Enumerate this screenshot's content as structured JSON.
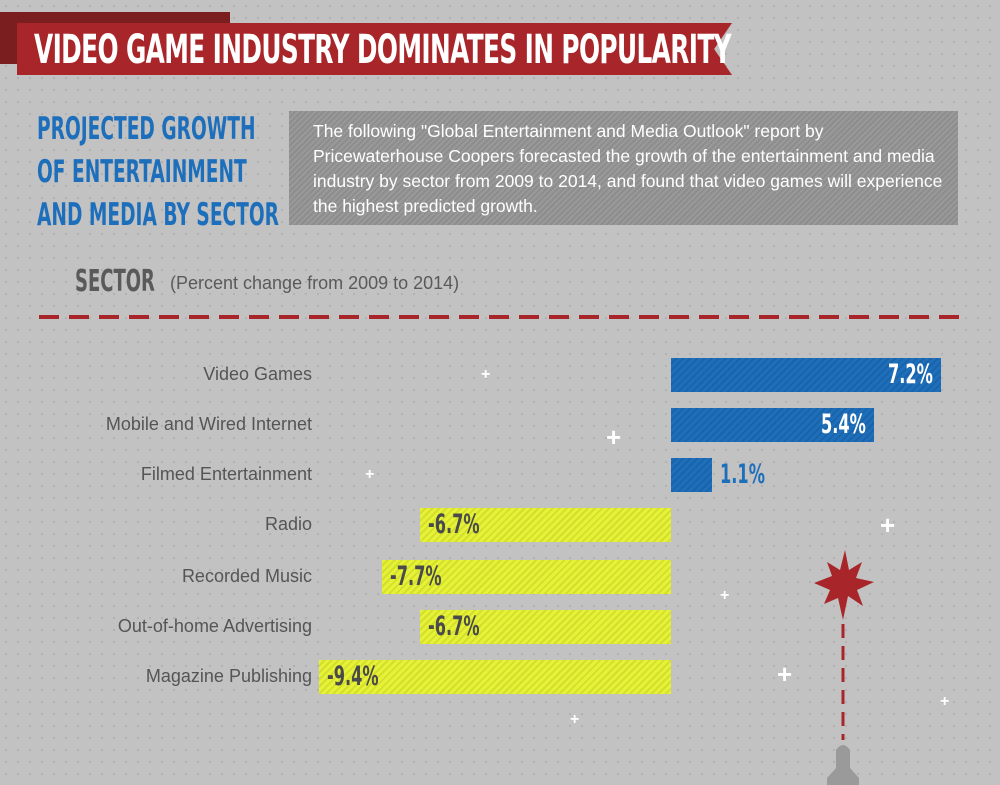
{
  "title": "VIDEO GAME INDUSTRY DOMINATES IN POPULARITY",
  "subtitle_lines": [
    "PROJECTED GROWTH",
    "OF ENTERTAINMENT",
    "AND MEDIA BY SECTOR"
  ],
  "intro": "The following \"Global Entertainment and Media Outlook\" report by Pricewaterhouse Coopers forecasted the growth of the entertainment and media industry by sector from 2009 to 2014, and found that video games will experience the highest predicted growth.",
  "sector_heading": "SECTOR",
  "sector_note": "(Percent change from 2009 to 2014)",
  "colors": {
    "positive": "#1e6fbb",
    "negative": "#e6f236",
    "accent": "#a8262a"
  },
  "chart_data": {
    "type": "bar",
    "orientation": "horizontal",
    "title": "Projected growth of entertainment and media by sector",
    "xlabel": "Percent change from 2009 to 2014",
    "categories": [
      "Video Games",
      "Mobile and Wired Internet",
      "Filmed Entertainment",
      "Radio",
      "Recorded Music",
      "Out-of-home Advertising",
      "Magazine Publishing"
    ],
    "values": [
      7.2,
      5.4,
      1.1,
      -6.7,
      -7.7,
      -6.7,
      -9.4
    ],
    "labels": [
      "7.2%",
      "5.4%",
      "1.1%",
      "-6.7%",
      "-7.7%",
      "-6.7%",
      "-9.4%"
    ],
    "xlim": [
      -9.4,
      7.2
    ],
    "grid": false
  }
}
